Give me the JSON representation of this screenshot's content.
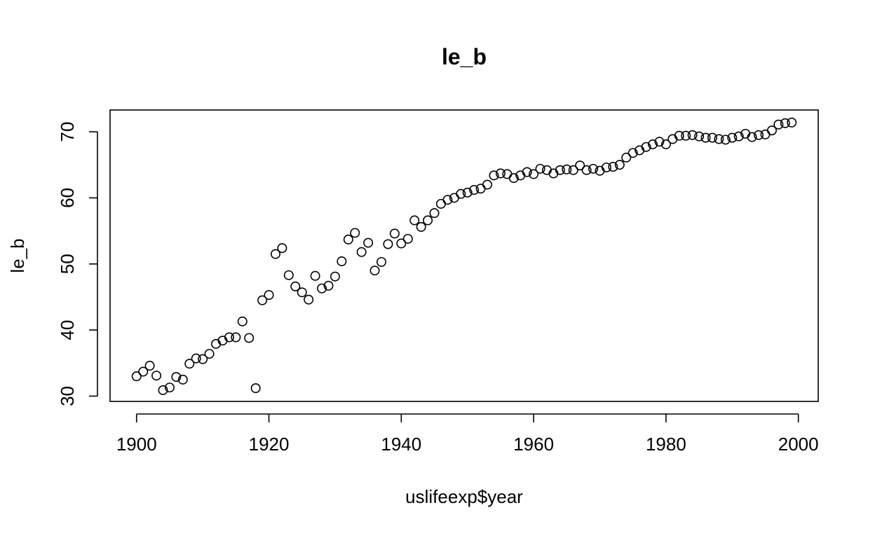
{
  "chart_data": {
    "type": "scatter",
    "title": "le_b",
    "xlabel": "uslifeexp$year",
    "ylabel": "le_b",
    "xlim": [
      1896,
      2003
    ],
    "ylim": [
      29.2,
      73.3
    ],
    "x_ticks": [
      1900,
      1920,
      1940,
      1960,
      1980,
      2000
    ],
    "y_ticks": [
      30,
      40,
      50,
      60,
      70
    ],
    "marker": "open-circle",
    "grid": false,
    "legend": "none",
    "series": [
      {
        "x": [
          1900,
          1901,
          1902,
          1903,
          1904,
          1905,
          1906,
          1907,
          1908,
          1909,
          1910,
          1911,
          1912,
          1913,
          1914,
          1915,
          1916,
          1917,
          1918,
          1919,
          1920,
          1921,
          1922,
          1923,
          1924,
          1925,
          1926,
          1927,
          1928,
          1929,
          1930,
          1931,
          1932,
          1933,
          1934,
          1935,
          1936,
          1937,
          1938,
          1939,
          1940,
          1941,
          1942,
          1943,
          1944,
          1945,
          1946,
          1947,
          1948,
          1949,
          1950,
          1951,
          1952,
          1953,
          1954,
          1955,
          1956,
          1957,
          1958,
          1959,
          1960,
          1961,
          1962,
          1963,
          1964,
          1965,
          1966,
          1967,
          1968,
          1969,
          1970,
          1971,
          1972,
          1973,
          1974,
          1975,
          1976,
          1977,
          1978,
          1979,
          1980,
          1981,
          1982,
          1983,
          1984,
          1985,
          1986,
          1987,
          1988,
          1989,
          1990,
          1991,
          1992,
          1993,
          1994,
          1995,
          1996,
          1997,
          1998,
          1999
        ],
        "y": [
          33.0,
          33.7,
          34.6,
          33.1,
          30.9,
          31.3,
          32.9,
          32.5,
          34.9,
          35.7,
          35.6,
          36.4,
          37.9,
          38.4,
          38.9,
          38.9,
          41.3,
          38.8,
          31.2,
          44.5,
          45.3,
          51.5,
          52.4,
          48.3,
          46.6,
          45.7,
          44.6,
          48.2,
          46.3,
          46.7,
          48.1,
          50.4,
          53.7,
          54.7,
          51.8,
          53.2,
          49.0,
          50.3,
          53.0,
          54.6,
          53.1,
          53.8,
          56.6,
          55.6,
          56.6,
          57.7,
          59.1,
          59.7,
          60.0,
          60.6,
          60.8,
          61.2,
          61.4,
          62.0,
          63.4,
          63.7,
          63.6,
          63.0,
          63.4,
          63.9,
          63.6,
          64.4,
          64.2,
          63.7,
          64.2,
          64.3,
          64.2,
          64.9,
          64.2,
          64.4,
          64.1,
          64.6,
          64.7,
          65.0,
          66.1,
          66.8,
          67.2,
          67.7,
          68.1,
          68.5,
          68.1,
          68.9,
          69.4,
          69.4,
          69.5,
          69.3,
          69.1,
          69.1,
          68.9,
          68.8,
          69.1,
          69.3,
          69.7,
          69.2,
          69.5,
          69.6,
          70.2,
          71.1,
          71.3,
          71.4
        ]
      }
    ]
  }
}
